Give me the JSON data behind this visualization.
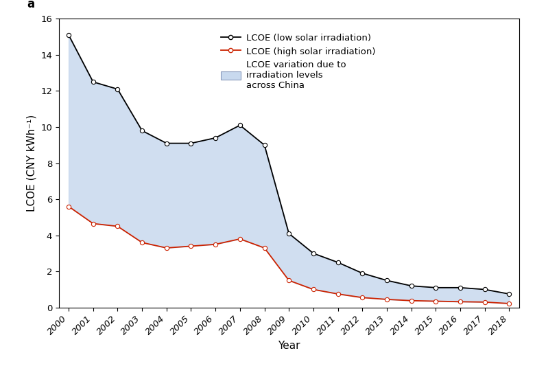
{
  "years": [
    2000,
    2001,
    2002,
    2003,
    2004,
    2005,
    2006,
    2007,
    2008,
    2009,
    2010,
    2011,
    2012,
    2013,
    2014,
    2015,
    2016,
    2017,
    2018
  ],
  "lcoe_low": [
    15.1,
    12.5,
    12.1,
    9.8,
    9.1,
    9.1,
    9.4,
    10.1,
    9.0,
    4.1,
    3.0,
    2.5,
    1.9,
    1.5,
    1.2,
    1.1,
    1.1,
    1.0,
    0.75
  ],
  "lcoe_high": [
    5.6,
    4.65,
    4.5,
    3.6,
    3.3,
    3.4,
    3.5,
    3.8,
    3.3,
    1.5,
    1.0,
    0.75,
    0.55,
    0.45,
    0.38,
    0.35,
    0.32,
    0.3,
    0.22
  ],
  "line_low_color": "#000000",
  "line_high_color": "#cc2200",
  "fill_color": "#c8d9ee",
  "fill_alpha": 0.85,
  "marker": "o",
  "markersize": 4.5,
  "linewidth": 1.3,
  "ylabel": "LCOE (CNY kWh⁻¹)",
  "xlabel": "Year",
  "ylim": [
    0,
    16
  ],
  "yticks": [
    0,
    2,
    4,
    6,
    8,
    10,
    12,
    14,
    16
  ],
  "legend_low": "LCOE (low solar irradiation)",
  "legend_high": "LCOE (high solar irradiation)",
  "legend_fill": "LCOE variation due to\nirradiation levels\nacross China",
  "panel_label": "a",
  "axis_fontsize": 11,
  "tick_fontsize": 9.5,
  "legend_fontsize": 9.5,
  "background_color": "#ffffff"
}
